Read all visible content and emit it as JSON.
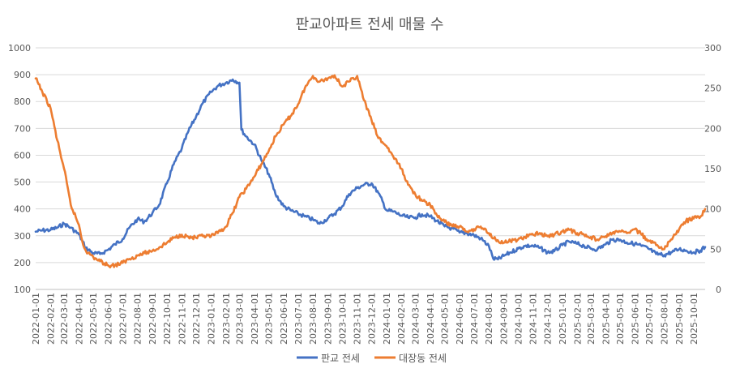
{
  "chart_data": {
    "type": "line",
    "title": "판교아파트 전세 매물 수",
    "xlabel": "",
    "ylabel": "",
    "x_start": "2022-01-01",
    "x_end": "2025-10-25",
    "x_ticks": [
      "2022-01-01",
      "2022-02-01",
      "2022-03-01",
      "2022-04-01",
      "2022-05-01",
      "2022-06-01",
      "2022-07-01",
      "2022-08-01",
      "2022-09-01",
      "2022-10-01",
      "2022-11-01",
      "2022-12-01",
      "2023-01-01",
      "2023-02-01",
      "2023-03-01",
      "2023-04-01",
      "2023-05-01",
      "2023-06-01",
      "2023-07-01",
      "2023-08-01",
      "2023-09-01",
      "2023-10-01",
      "2023-11-01",
      "2023-12-01",
      "2024-01-01",
      "2024-02-01",
      "2024-03-01",
      "2024-04-01",
      "2024-05-01",
      "2024-06-01",
      "2024-07-01",
      "2024-08-01",
      "2024-09-01",
      "2024-10-01",
      "2024-11-01",
      "2024-12-01",
      "2025-01-01",
      "2025-02-01",
      "2025-03-01",
      "2025-04-01",
      "2025-05-01",
      "2025-06-01",
      "2025-07-01",
      "2025-08-01",
      "2025-09-01",
      "2025-10-01"
    ],
    "y_left": {
      "ticks": [
        "100",
        "200",
        "300",
        "400",
        "500",
        "600",
        "700",
        "800",
        "900",
        "1000"
      ],
      "min": 100,
      "max": 1000
    },
    "y_right": {
      "ticks": [
        "0",
        "50",
        "100",
        "150",
        "200",
        "250",
        "300"
      ],
      "min": 0,
      "max": 300
    },
    "grid": "horizontal",
    "legend_position": "bottom",
    "series": [
      {
        "name": "판교 전세",
        "axis": "left",
        "color": "#4472C4",
        "points": [
          [
            "2022-01-01",
            315
          ],
          [
            "2022-01-15",
            320
          ],
          [
            "2022-02-01",
            322
          ],
          [
            "2022-02-15",
            330
          ],
          [
            "2022-03-01",
            345
          ],
          [
            "2022-03-15",
            330
          ],
          [
            "2022-04-01",
            305
          ],
          [
            "2022-04-15",
            255
          ],
          [
            "2022-05-01",
            235
          ],
          [
            "2022-05-15",
            232
          ],
          [
            "2022-06-01",
            248
          ],
          [
            "2022-06-15",
            268
          ],
          [
            "2022-07-01",
            288
          ],
          [
            "2022-07-15",
            330
          ],
          [
            "2022-08-01",
            362
          ],
          [
            "2022-08-15",
            352
          ],
          [
            "2022-09-01",
            385
          ],
          [
            "2022-09-15",
            415
          ],
          [
            "2022-10-01",
            495
          ],
          [
            "2022-10-15",
            565
          ],
          [
            "2022-11-01",
            625
          ],
          [
            "2022-11-15",
            690
          ],
          [
            "2022-12-01",
            745
          ],
          [
            "2022-12-15",
            795
          ],
          [
            "2023-01-01",
            835
          ],
          [
            "2023-01-15",
            858
          ],
          [
            "2023-02-01",
            870
          ],
          [
            "2023-02-15",
            882
          ],
          [
            "2023-03-01",
            870
          ],
          [
            "2023-03-05",
            695
          ],
          [
            "2023-03-15",
            670
          ],
          [
            "2023-04-01",
            640
          ],
          [
            "2023-04-15",
            585
          ],
          [
            "2023-05-01",
            530
          ],
          [
            "2023-05-15",
            455
          ],
          [
            "2023-06-01",
            410
          ],
          [
            "2023-06-15",
            395
          ],
          [
            "2023-07-01",
            382
          ],
          [
            "2023-07-15",
            372
          ],
          [
            "2023-08-01",
            360
          ],
          [
            "2023-08-15",
            345
          ],
          [
            "2023-09-01",
            365
          ],
          [
            "2023-09-15",
            382
          ],
          [
            "2023-10-01",
            410
          ],
          [
            "2023-10-15",
            455
          ],
          [
            "2023-11-01",
            478
          ],
          [
            "2023-11-15",
            490
          ],
          [
            "2023-12-01",
            495
          ],
          [
            "2023-12-15",
            460
          ],
          [
            "2024-01-01",
            395
          ],
          [
            "2024-01-15",
            390
          ],
          [
            "2024-02-01",
            375
          ],
          [
            "2024-02-15",
            368
          ],
          [
            "2024-03-01",
            368
          ],
          [
            "2024-03-15",
            380
          ],
          [
            "2024-04-01",
            372
          ],
          [
            "2024-04-15",
            355
          ],
          [
            "2024-05-01",
            335
          ],
          [
            "2024-05-15",
            328
          ],
          [
            "2024-06-01",
            312
          ],
          [
            "2024-06-15",
            310
          ],
          [
            "2024-07-01",
            302
          ],
          [
            "2024-07-15",
            290
          ],
          [
            "2024-08-01",
            262
          ],
          [
            "2024-08-10",
            215
          ],
          [
            "2024-08-20",
            212
          ],
          [
            "2024-09-01",
            225
          ],
          [
            "2024-09-15",
            238
          ],
          [
            "2024-10-01",
            252
          ],
          [
            "2024-10-15",
            262
          ],
          [
            "2024-11-01",
            262
          ],
          [
            "2024-11-15",
            255
          ],
          [
            "2024-12-01",
            238
          ],
          [
            "2024-12-15",
            242
          ],
          [
            "2025-01-01",
            265
          ],
          [
            "2025-01-15",
            278
          ],
          [
            "2025-02-01",
            270
          ],
          [
            "2025-02-15",
            262
          ],
          [
            "2025-03-01",
            252
          ],
          [
            "2025-03-15",
            250
          ],
          [
            "2025-04-01",
            268
          ],
          [
            "2025-04-15",
            285
          ],
          [
            "2025-05-01",
            285
          ],
          [
            "2025-05-15",
            275
          ],
          [
            "2025-06-01",
            270
          ],
          [
            "2025-06-15",
            262
          ],
          [
            "2025-07-01",
            250
          ],
          [
            "2025-07-15",
            232
          ],
          [
            "2025-08-01",
            228
          ],
          [
            "2025-08-15",
            238
          ],
          [
            "2025-09-01",
            250
          ],
          [
            "2025-09-15",
            245
          ],
          [
            "2025-10-01",
            238
          ],
          [
            "2025-10-15",
            245
          ],
          [
            "2025-10-25",
            258
          ]
        ]
      },
      {
        "name": "대장동 전세",
        "axis": "right",
        "color": "#ED7D31",
        "points": [
          [
            "2022-01-01",
            262
          ],
          [
            "2022-01-15",
            245
          ],
          [
            "2022-02-01",
            225
          ],
          [
            "2022-02-15",
            185
          ],
          [
            "2022-03-01",
            150
          ],
          [
            "2022-03-15",
            105
          ],
          [
            "2022-04-01",
            80
          ],
          [
            "2022-04-10",
            55
          ],
          [
            "2022-04-20",
            45
          ],
          [
            "2022-05-01",
            40
          ],
          [
            "2022-05-15",
            35
          ],
          [
            "2022-06-01",
            30
          ],
          [
            "2022-06-15",
            30
          ],
          [
            "2022-07-01",
            33
          ],
          [
            "2022-07-15",
            38
          ],
          [
            "2022-08-01",
            42
          ],
          [
            "2022-08-15",
            45
          ],
          [
            "2022-09-01",
            48
          ],
          [
            "2022-09-15",
            52
          ],
          [
            "2022-10-01",
            58
          ],
          [
            "2022-10-15",
            64
          ],
          [
            "2022-11-01",
            68
          ],
          [
            "2022-11-15",
            65
          ],
          [
            "2022-12-01",
            64
          ],
          [
            "2022-12-15",
            66
          ],
          [
            "2023-01-01",
            66
          ],
          [
            "2023-01-15",
            70
          ],
          [
            "2023-02-01",
            78
          ],
          [
            "2023-02-15",
            95
          ],
          [
            "2023-03-01",
            115
          ],
          [
            "2023-03-15",
            125
          ],
          [
            "2023-04-01",
            140
          ],
          [
            "2023-04-15",
            155
          ],
          [
            "2023-05-01",
            172
          ],
          [
            "2023-05-15",
            190
          ],
          [
            "2023-06-01",
            205
          ],
          [
            "2023-06-15",
            215
          ],
          [
            "2023-07-01",
            230
          ],
          [
            "2023-07-15",
            250
          ],
          [
            "2023-08-01",
            265
          ],
          [
            "2023-08-15",
            258
          ],
          [
            "2023-09-01",
            262
          ],
          [
            "2023-09-15",
            266
          ],
          [
            "2023-10-01",
            252
          ],
          [
            "2023-10-15",
            258
          ],
          [
            "2023-11-01",
            265
          ],
          [
            "2023-11-15",
            235
          ],
          [
            "2023-12-01",
            210
          ],
          [
            "2023-12-15",
            188
          ],
          [
            "2024-01-01",
            178
          ],
          [
            "2024-01-15",
            165
          ],
          [
            "2024-02-01",
            150
          ],
          [
            "2024-02-15",
            130
          ],
          [
            "2024-03-01",
            118
          ],
          [
            "2024-03-15",
            110
          ],
          [
            "2024-04-01",
            105
          ],
          [
            "2024-04-15",
            92
          ],
          [
            "2024-05-01",
            84
          ],
          [
            "2024-05-15",
            80
          ],
          [
            "2024-06-01",
            78
          ],
          [
            "2024-06-15",
            72
          ],
          [
            "2024-07-01",
            75
          ],
          [
            "2024-07-15",
            78
          ],
          [
            "2024-08-01",
            70
          ],
          [
            "2024-08-15",
            62
          ],
          [
            "2024-09-01",
            58
          ],
          [
            "2024-09-15",
            60
          ],
          [
            "2024-10-01",
            62
          ],
          [
            "2024-10-15",
            65
          ],
          [
            "2024-11-01",
            68
          ],
          [
            "2024-11-15",
            70
          ],
          [
            "2024-12-01",
            66
          ],
          [
            "2024-12-15",
            68
          ],
          [
            "2025-01-01",
            72
          ],
          [
            "2025-01-15",
            74
          ],
          [
            "2025-02-01",
            70
          ],
          [
            "2025-02-15",
            68
          ],
          [
            "2025-03-01",
            65
          ],
          [
            "2025-03-15",
            62
          ],
          [
            "2025-04-01",
            66
          ],
          [
            "2025-04-15",
            70
          ],
          [
            "2025-05-01",
            72
          ],
          [
            "2025-05-15",
            70
          ],
          [
            "2025-06-01",
            75
          ],
          [
            "2025-06-15",
            68
          ],
          [
            "2025-07-01",
            60
          ],
          [
            "2025-07-15",
            55
          ],
          [
            "2025-08-01",
            50
          ],
          [
            "2025-08-15",
            62
          ],
          [
            "2025-09-01",
            75
          ],
          [
            "2025-09-15",
            85
          ],
          [
            "2025-10-01",
            88
          ],
          [
            "2025-10-15",
            90
          ],
          [
            "2025-10-25",
            100
          ]
        ]
      }
    ]
  }
}
